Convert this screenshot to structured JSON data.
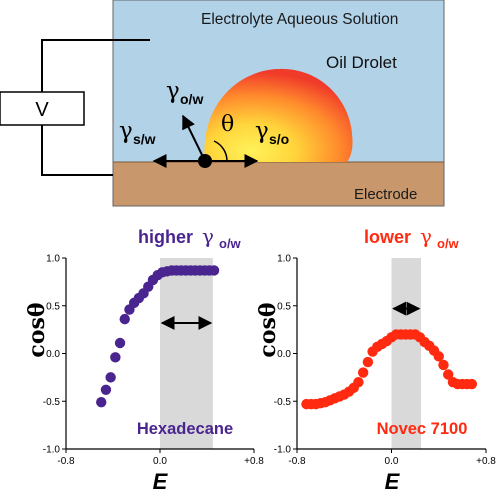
{
  "schematic": {
    "solution_label": "Electrolyte Aqueous Solution",
    "droplet_label": "Oil Drolet",
    "electrode_label": "Electrode",
    "voltmeter_label": "V",
    "theta": "θ",
    "gamma": "γ",
    "sub_ow": "o/w",
    "sub_sw": "s/w",
    "sub_so": "s/o",
    "colors": {
      "solution": "#b2d2e8",
      "electrode": "#c8976b",
      "drop_inner": "#ffe04a",
      "drop_outer": "#f03a2a"
    }
  },
  "chart_data": [
    {
      "type": "scatter",
      "title": "higher γo/w",
      "title_word": "higher",
      "title_symbol": "γ",
      "title_sub": "o/w",
      "annotation": "Hexadecane",
      "xlabel": "E",
      "ylabel": "cosθ",
      "xlim": [
        -0.8,
        0.8
      ],
      "ylim": [
        -1.0,
        1.0
      ],
      "x_ticks": [
        "-0.8",
        "0.0",
        "+0.8"
      ],
      "y_ticks": [
        "-1.0",
        "-0.5",
        "0.0",
        "0.5",
        "1.0"
      ],
      "shaded_range": [
        0.0,
        0.45
      ],
      "arrow_range": [
        0.0,
        0.45
      ],
      "arrow_y": 0.32,
      "color": "#4a2590",
      "series": [
        {
          "x": [
            -0.5,
            -0.46,
            -0.42,
            -0.38,
            -0.34,
            -0.3,
            -0.26,
            -0.22,
            -0.18,
            -0.14,
            -0.1,
            -0.06,
            -0.02,
            0.02,
            0.06,
            0.1,
            0.14,
            0.18,
            0.22,
            0.26,
            0.3,
            0.34,
            0.38,
            0.42,
            0.46
          ],
          "y": [
            -0.51,
            -0.38,
            -0.25,
            -0.04,
            0.11,
            0.36,
            0.46,
            0.53,
            0.58,
            0.63,
            0.7,
            0.77,
            0.82,
            0.85,
            0.86,
            0.87,
            0.87,
            0.87,
            0.87,
            0.87,
            0.87,
            0.87,
            0.87,
            0.87,
            0.87
          ]
        }
      ]
    },
    {
      "type": "scatter",
      "title": "lower γo/w",
      "title_word": "lower",
      "title_symbol": "γ",
      "title_sub": "o/w",
      "annotation": "Novec 7100",
      "xlabel": "E",
      "ylabel": "cosθ",
      "xlim": [
        -0.8,
        0.8
      ],
      "ylim": [
        -1.0,
        1.0
      ],
      "x_ticks": [
        "-0.8",
        "0.0",
        "+0.8"
      ],
      "y_ticks": [
        "-1.0",
        "-0.5",
        "0.0",
        "0.5",
        "1.0"
      ],
      "shaded_range": [
        0.0,
        0.25
      ],
      "arrow_range": [
        0.0,
        0.25
      ],
      "arrow_y": 0.47,
      "color": "#ff2a10",
      "series": [
        {
          "x": [
            -0.72,
            -0.68,
            -0.64,
            -0.6,
            -0.56,
            -0.52,
            -0.48,
            -0.44,
            -0.4,
            -0.36,
            -0.32,
            -0.28,
            -0.24,
            -0.2,
            -0.16,
            -0.12,
            -0.08,
            -0.04,
            0.0,
            0.04,
            0.08,
            0.12,
            0.16,
            0.2,
            0.24,
            0.28,
            0.32,
            0.36,
            0.4,
            0.44,
            0.48,
            0.52,
            0.56,
            0.6,
            0.64,
            0.68
          ],
          "y": [
            -0.53,
            -0.53,
            -0.53,
            -0.52,
            -0.51,
            -0.49,
            -0.47,
            -0.45,
            -0.43,
            -0.4,
            -0.36,
            -0.3,
            -0.2,
            -0.09,
            0.02,
            0.07,
            0.1,
            0.13,
            0.17,
            0.2,
            0.2,
            0.2,
            0.2,
            0.2,
            0.17,
            0.12,
            0.08,
            0.03,
            -0.03,
            -0.12,
            -0.22,
            -0.3,
            -0.32,
            -0.32,
            -0.32,
            -0.32
          ]
        }
      ]
    }
  ]
}
